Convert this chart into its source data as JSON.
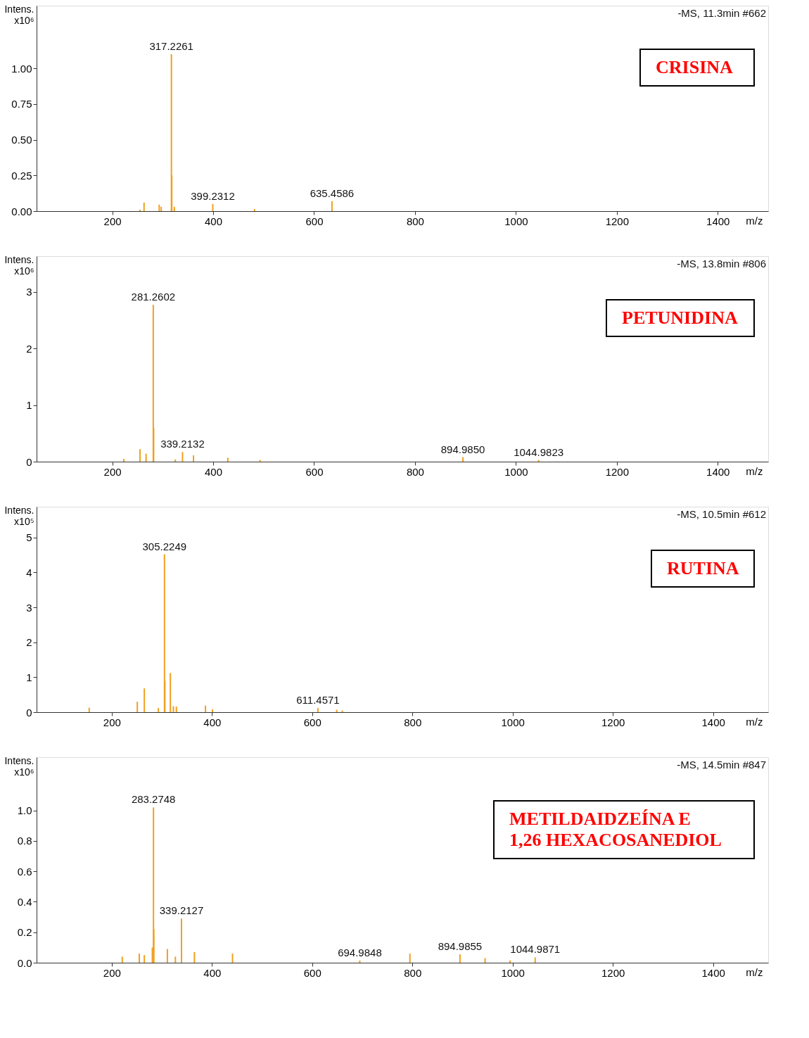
{
  "chart_data": [
    {
      "type": "bar",
      "ylabel": "Intens.\nx10⁶",
      "xlabel": "m/z",
      "annotations": [
        "-MS, 11.3min #662",
        "CRISINA",
        {
          "text": "317.2261",
          "x": 317.2261,
          "y": 1.1
        },
        {
          "text": "399.2312",
          "x": 399.2312,
          "y": 0.05
        },
        {
          "text": "635.4586",
          "x": 635.4586,
          "y": 0.07
        }
      ],
      "xlim": [
        50,
        1500
      ],
      "xticks": [
        200,
        400,
        600,
        800,
        1000,
        1200,
        1400
      ],
      "ylim": [
        0,
        1.44
      ],
      "yticks": [
        {
          "value": 0,
          "label": "0.00"
        },
        {
          "value": 0.25,
          "label": "0.25"
        },
        {
          "value": 0.5,
          "label": "0.50"
        },
        {
          "value": 0.75,
          "label": "0.75"
        },
        {
          "value": 1,
          "label": "1.00"
        }
      ],
      "grid": false,
      "series": [
        {
          "color": "#f0a020",
          "x": [
            255,
            263,
            293,
            297,
            317.2261,
            318,
            323,
            399.2312,
            482,
            635.4586
          ],
          "values": [
            0.01,
            0.06,
            0.045,
            0.03,
            1.1,
            0.25,
            0.03,
            0.05,
            0.015,
            0.07
          ]
        }
      ]
    },
    {
      "type": "bar",
      "ylabel": "Intens.\nx10⁶",
      "xlabel": "m/z",
      "annotations": [
        "-MS, 13.8min #806",
        "PETUNIDINA",
        {
          "text": "281.2602",
          "x": 281.2602,
          "y": 2.77
        },
        {
          "text": "339.2132",
          "x": 339.2132,
          "y": 0.17
        },
        {
          "text": "894.9850",
          "x": 894.985,
          "y": 0.08
        },
        {
          "text": "1044.9823",
          "x": 1044.9823,
          "y": 0.03
        }
      ],
      "xlim": [
        50,
        1500
      ],
      "xticks": [
        200,
        400,
        600,
        800,
        1000,
        1200,
        1400
      ],
      "ylim": [
        0,
        3.63
      ],
      "yticks": [
        0,
        1,
        2,
        3
      ],
      "grid": false,
      "series": [
        {
          "color": "#f0a020",
          "x": [
            223,
            255,
            267,
            281.2602,
            282,
            325,
            339.2132,
            361,
            429,
            493,
            894.985,
            1044.9823
          ],
          "values": [
            0.05,
            0.22,
            0.14,
            2.77,
            0.6,
            0.04,
            0.17,
            0.11,
            0.07,
            0.03,
            0.08,
            0.03
          ]
        }
      ]
    },
    {
      "type": "bar",
      "ylabel": "Intens.\nx10⁵",
      "xlabel": "m/z",
      "annotations": [
        "-MS, 10.5min #612",
        "RUTINA",
        {
          "text": "305.2249",
          "x": 305.2249,
          "y": 4.52
        },
        {
          "text": "611.4571",
          "x": 611.4571,
          "y": 0.12
        }
      ],
      "xlim": [
        50,
        1510
      ],
      "xticks": [
        200,
        400,
        600,
        800,
        1000,
        1200,
        1400
      ],
      "ylim": [
        0,
        5.88
      ],
      "yticks": [
        0,
        1,
        2,
        3,
        4,
        5
      ],
      "grid": false,
      "series": [
        {
          "color": "#f0a020",
          "x": [
            155,
            251,
            265,
            293,
            305.2249,
            306,
            317,
            323,
            329,
            387,
            401,
            611.4571,
            649,
            660
          ],
          "values": [
            0.13,
            0.3,
            0.68,
            0.12,
            4.52,
            0.9,
            1.12,
            0.17,
            0.16,
            0.19,
            0.08,
            0.12,
            0.07,
            0.05
          ]
        }
      ]
    },
    {
      "type": "bar",
      "ylabel": "Intens.\nx10⁶",
      "xlabel": "m/z",
      "annotations": [
        "-MS, 14.5min #847",
        "METILDAIDZEÍNA  E\n 1,26 HEXACOSANEDIOL",
        {
          "text": "283.2748",
          "x": 283.2748,
          "y": 1.02
        },
        {
          "text": "339.2127",
          "x": 339.2127,
          "y": 0.29
        },
        {
          "text": "694.9848",
          "x": 694.9848,
          "y": 0.015
        },
        {
          "text": "894.9855",
          "x": 894.9855,
          "y": 0.055
        },
        {
          "text": "1044.9871",
          "x": 1044.9871,
          "y": 0.035
        }
      ],
      "xlim": [
        50,
        1510
      ],
      "xticks": [
        200,
        400,
        600,
        800,
        1000,
        1200,
        1400
      ],
      "ylim": [
        0,
        1.35
      ],
      "yticks": [
        {
          "value": 0,
          "label": "0.0"
        },
        {
          "value": 0.2,
          "label": "0.2"
        },
        {
          "value": 0.4,
          "label": "0.4"
        },
        {
          "value": 0.6,
          "label": "0.6"
        },
        {
          "value": 0.8,
          "label": "0.8"
        },
        {
          "value": 1,
          "label": "1.0"
        }
      ],
      "grid": false,
      "series": [
        {
          "color": "#f0a020",
          "x": [
            221,
            255,
            265,
            281,
            283.2748,
            284,
            311,
            327,
            339.2127,
            365,
            441,
            694.9848,
            795,
            894.9855,
            945,
            995,
            1044.9871
          ],
          "values": [
            0.04,
            0.06,
            0.05,
            0.1,
            1.02,
            0.22,
            0.09,
            0.04,
            0.29,
            0.07,
            0.06,
            0.015,
            0.06,
            0.055,
            0.03,
            0.015,
            0.035
          ]
        }
      ]
    }
  ]
}
